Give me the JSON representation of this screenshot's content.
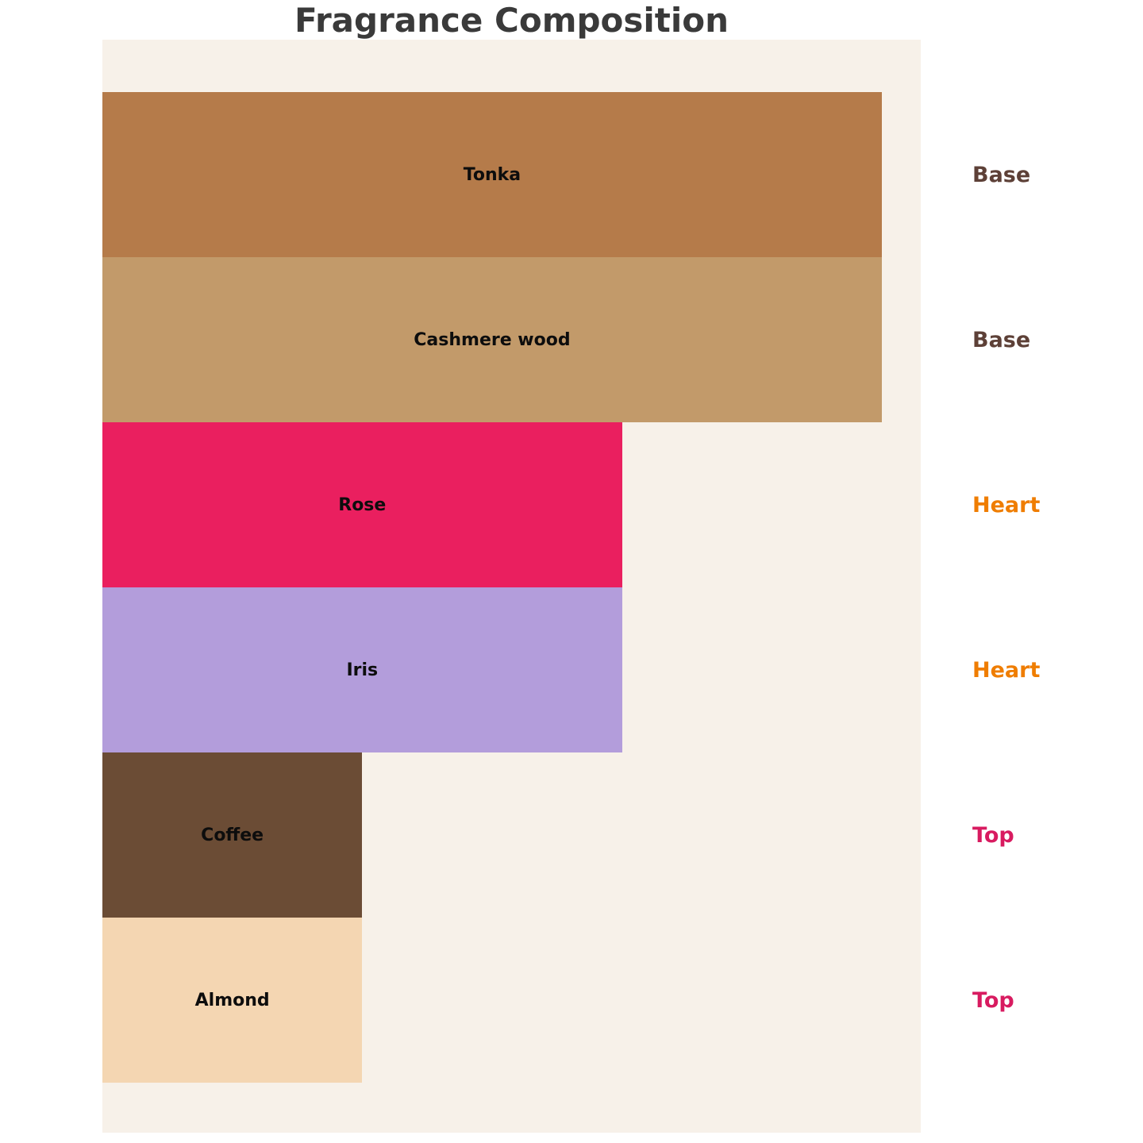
{
  "title": "Fragrance Composition",
  "colors": {
    "title": "#3a3a3a",
    "plot_background": "#f7f1e9",
    "figure_background": "#ffffff",
    "bar_label": "#0d0d0d"
  },
  "chart_data": {
    "type": "bar",
    "orientation": "horizontal",
    "title": "Fragrance Composition",
    "categories": [
      "Tonka",
      "Cashmere wood",
      "Rose",
      "Iris",
      "Coffee",
      "Almond"
    ],
    "values": [
      30,
      30,
      20,
      20,
      10,
      10
    ],
    "note_groups": [
      "Base",
      "Base",
      "Heart",
      "Heart",
      "Top",
      "Top"
    ],
    "bar_colors": [
      "#b57b4a",
      "#c29a6a",
      "#ea1f5f",
      "#b39ddb",
      "#6b4c35",
      "#f4d6b2"
    ],
    "group_label_colors": {
      "Base": "#5d4037",
      "Heart": "#ef7d00",
      "Top": "#d81b60"
    },
    "xlim": [
      0,
      31.5
    ],
    "grid": false,
    "legend": "none",
    "bar_order_top_to_bottom": true
  }
}
